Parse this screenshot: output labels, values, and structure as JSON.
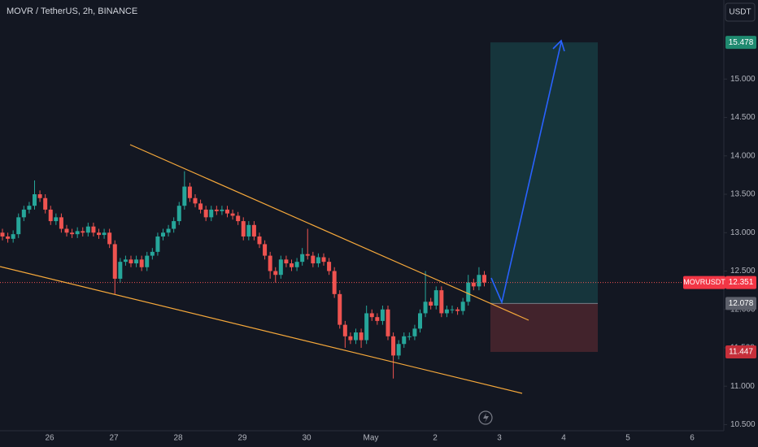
{
  "chart_data": {
    "type": "candlestick",
    "title": "MOVR / TetherUS, 2h, BINANCE",
    "currency": "USDT",
    "symbol": "MOVRUSDT",
    "up_color": "#26a69a",
    "down_color": "#ef5350",
    "ylim": [
      10.42,
      16.03
    ],
    "yticks": [
      {
        "value": 10.5,
        "label": "10.500"
      },
      {
        "value": 11,
        "label": "11.000"
      },
      {
        "value": 11.5,
        "label": "11.500"
      },
      {
        "value": 12,
        "label": "12.000"
      },
      {
        "value": 12.5,
        "label": "12.500"
      },
      {
        "value": 13,
        "label": "13.000"
      },
      {
        "value": 13.5,
        "label": "13.500"
      },
      {
        "value": 14,
        "label": "14.000"
      },
      {
        "value": 14.5,
        "label": "14.500"
      },
      {
        "value": 15,
        "label": "15.000"
      }
    ],
    "grid": false,
    "xticks": [
      "26",
      "27",
      "28",
      "29",
      "30",
      "May",
      "2",
      "3",
      "4",
      "5",
      "6"
    ],
    "last_price": 12.351,
    "position": {
      "target": 15.478,
      "entry": 12.078,
      "stop": 11.447
    },
    "ohlc": {
      "open": [
        13.0,
        12.95,
        12.92,
        12.98,
        13.2,
        13.3,
        13.35,
        13.5,
        13.45,
        13.3,
        13.15,
        13.2,
        13.05,
        13.0,
        12.98,
        13.02,
        13.0,
        13.08,
        13.0,
        12.97,
        13.0,
        12.85,
        12.4,
        12.62,
        12.65,
        12.6,
        12.65,
        12.55,
        12.7,
        12.75,
        12.95,
        13.0,
        13.05,
        13.15,
        13.35,
        13.6,
        13.45,
        13.38,
        13.3,
        13.2,
        13.3,
        13.28,
        13.3,
        13.25,
        13.22,
        13.15,
        12.95,
        13.1,
        12.95,
        12.85,
        12.7,
        12.5,
        12.45,
        12.65,
        12.6,
        12.55,
        12.62,
        12.72,
        12.7,
        12.6,
        12.68,
        12.62,
        12.5,
        12.2,
        11.8,
        11.65,
        11.6,
        11.7,
        11.6,
        11.95,
        11.9,
        11.85,
        12.0,
        11.65,
        11.4,
        11.55,
        11.65,
        11.65,
        11.75,
        11.95,
        12.1,
        12.05,
        12.25,
        11.95,
        12.0,
        12.0,
        11.98,
        12.1,
        12.35,
        12.3,
        12.45
      ],
      "high": [
        13.05,
        13.0,
        13.03,
        13.25,
        13.35,
        13.4,
        13.68,
        13.55,
        13.5,
        13.35,
        13.25,
        13.25,
        13.1,
        13.05,
        13.07,
        13.07,
        13.13,
        13.13,
        13.05,
        13.05,
        13.05,
        12.9,
        12.67,
        12.7,
        12.7,
        12.7,
        12.7,
        12.75,
        12.8,
        13.0,
        13.05,
        13.1,
        13.2,
        13.4,
        13.8,
        13.65,
        13.5,
        13.43,
        13.35,
        13.35,
        13.35,
        13.35,
        13.35,
        13.3,
        13.27,
        13.2,
        13.15,
        13.15,
        13.0,
        12.9,
        12.75,
        12.55,
        12.7,
        12.7,
        12.65,
        12.67,
        12.8,
        13.05,
        12.75,
        12.73,
        12.73,
        12.67,
        12.55,
        12.25,
        11.85,
        11.7,
        11.75,
        11.75,
        12.05,
        12.0,
        11.95,
        12.05,
        12.05,
        11.7,
        11.6,
        11.7,
        11.7,
        11.8,
        12.0,
        12.5,
        12.15,
        12.3,
        12.3,
        12.05,
        12.05,
        12.03,
        12.15,
        12.45,
        12.4,
        12.55,
        12.5
      ],
      "low": [
        12.9,
        12.87,
        12.87,
        12.93,
        13.15,
        13.25,
        13.3,
        13.4,
        13.25,
        13.1,
        13.1,
        13.0,
        12.95,
        12.93,
        12.93,
        12.95,
        12.95,
        12.95,
        12.92,
        12.92,
        12.8,
        12.2,
        12.35,
        12.57,
        12.55,
        12.55,
        12.5,
        12.5,
        12.65,
        12.7,
        12.9,
        12.95,
        13.0,
        13.1,
        13.3,
        13.4,
        13.33,
        13.25,
        13.15,
        13.15,
        13.23,
        13.23,
        13.2,
        13.17,
        13.1,
        12.9,
        12.9,
        12.9,
        12.8,
        12.65,
        12.4,
        12.35,
        12.4,
        12.55,
        12.5,
        12.5,
        12.57,
        12.65,
        12.55,
        12.55,
        12.57,
        12.45,
        12.15,
        11.75,
        11.5,
        11.55,
        11.55,
        11.5,
        11.55,
        11.85,
        11.8,
        11.8,
        11.6,
        11.1,
        11.35,
        11.5,
        11.6,
        11.6,
        11.7,
        11.9,
        12.0,
        12.0,
        11.9,
        11.9,
        11.95,
        11.93,
        11.93,
        12.05,
        12.25,
        12.25,
        12.3
      ],
      "close": [
        12.95,
        12.92,
        12.98,
        13.2,
        13.3,
        13.35,
        13.5,
        13.45,
        13.3,
        13.15,
        13.2,
        13.05,
        13.0,
        12.98,
        13.02,
        13.0,
        13.08,
        13.0,
        12.97,
        13.0,
        12.85,
        12.4,
        12.62,
        12.65,
        12.6,
        12.65,
        12.55,
        12.7,
        12.75,
        12.95,
        13.0,
        13.05,
        13.15,
        13.35,
        13.6,
        13.45,
        13.38,
        13.3,
        13.2,
        13.3,
        13.28,
        13.3,
        13.25,
        13.22,
        13.15,
        12.95,
        13.1,
        12.95,
        12.85,
        12.7,
        12.5,
        12.45,
        12.65,
        12.6,
        12.55,
        12.62,
        12.72,
        12.7,
        12.6,
        12.68,
        12.62,
        12.5,
        12.2,
        11.8,
        11.65,
        11.6,
        11.7,
        11.6,
        11.95,
        11.9,
        11.85,
        12.0,
        11.65,
        11.4,
        11.55,
        11.65,
        11.65,
        11.75,
        11.95,
        12.1,
        12.05,
        12.25,
        11.95,
        12.0,
        12.0,
        11.98,
        12.1,
        12.35,
        12.3,
        12.45,
        12.351
      ]
    }
  }
}
